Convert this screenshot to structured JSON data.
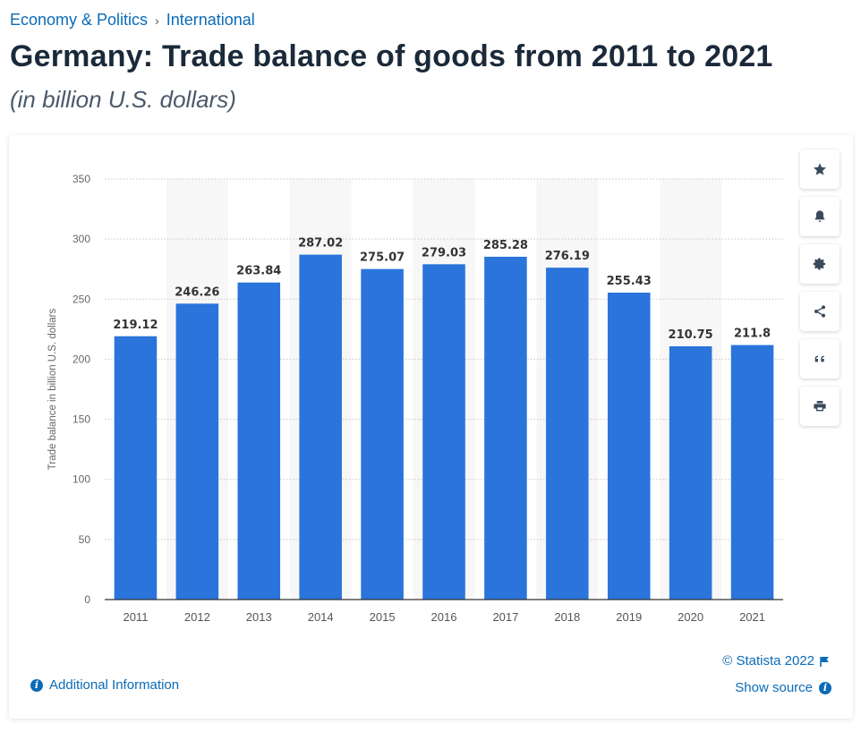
{
  "breadcrumb": {
    "first": "Economy & Politics",
    "separator": "›",
    "second": "International"
  },
  "title": "Germany: Trade balance of goods from 2011 to 2021",
  "subtitle": "(in billion U.S. dollars)",
  "chart_data": {
    "type": "bar",
    "categories": [
      "2011",
      "2012",
      "2013",
      "2014",
      "2015",
      "2016",
      "2017",
      "2018",
      "2019",
      "2020",
      "2021"
    ],
    "values": [
      219.12,
      246.26,
      263.84,
      287.02,
      275.07,
      279.03,
      285.28,
      276.19,
      255.43,
      210.75,
      211.8
    ],
    "value_labels": [
      "219.12",
      "246.26",
      "263.84",
      "287.02",
      "275.07",
      "279.03",
      "285.28",
      "276.19",
      "255.43",
      "210.75",
      "211.8"
    ],
    "ylabel": "Trade balance in billion U.S. dollars",
    "xlabel": "",
    "ylim": [
      0,
      350
    ],
    "yticks": [
      0,
      50,
      100,
      150,
      200,
      250,
      300,
      350
    ],
    "grid": true,
    "bar_color": "#2a74db",
    "alternate_band_color": "#f7f7f7"
  },
  "tools": [
    {
      "name": "star-icon"
    },
    {
      "name": "bell-icon"
    },
    {
      "name": "gear-icon"
    },
    {
      "name": "share-icon"
    },
    {
      "name": "quote-icon"
    },
    {
      "name": "print-icon"
    }
  ],
  "footer": {
    "additional_info": "Additional Information",
    "copyright": "© Statista 2022",
    "show_source": "Show source"
  },
  "colors": {
    "accent": "#0b6bb7",
    "title": "#1b2a3a"
  }
}
